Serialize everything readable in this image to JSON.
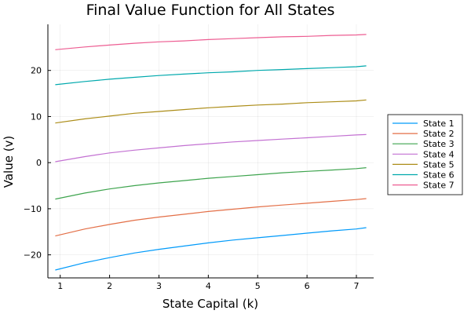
{
  "chart_data": {
    "type": "line",
    "title": "Final Value Function for All States",
    "xlabel": "State Capital (k)",
    "ylabel": "Value (v)",
    "xlim": [
      0.75,
      7.35
    ],
    "ylim": [
      -25,
      30
    ],
    "xticks": [
      1,
      2,
      3,
      4,
      5,
      6,
      7
    ],
    "yticks": [
      -20,
      -10,
      0,
      10,
      20
    ],
    "ytick_labels": [
      "−20",
      "−10",
      "0",
      "10",
      "20"
    ],
    "grid": true,
    "legend_position": "right",
    "x": [
      0.9,
      1.5,
      2.0,
      2.5,
      3.0,
      3.5,
      4.0,
      4.5,
      5.0,
      5.5,
      6.0,
      6.5,
      7.0,
      7.2
    ],
    "series": [
      {
        "name": "State 1",
        "color": "#009AFA",
        "values": [
          -23.3,
          -21.7,
          -20.6,
          -19.6,
          -18.8,
          -18.1,
          -17.4,
          -16.8,
          -16.3,
          -15.8,
          -15.3,
          -14.8,
          -14.4,
          -14.1
        ]
      },
      {
        "name": "State 2",
        "color": "#E36F47",
        "values": [
          -15.9,
          -14.4,
          -13.4,
          -12.5,
          -11.8,
          -11.2,
          -10.6,
          -10.1,
          -9.6,
          -9.2,
          -8.8,
          -8.4,
          -8.0,
          -7.8
        ]
      },
      {
        "name": "State 3",
        "color": "#3EA44E",
        "values": [
          -7.9,
          -6.6,
          -5.7,
          -5.0,
          -4.4,
          -3.9,
          -3.4,
          -3.0,
          -2.6,
          -2.2,
          -1.9,
          -1.6,
          -1.3,
          -1.1
        ]
      },
      {
        "name": "State 4",
        "color": "#C371D2",
        "values": [
          0.2,
          1.3,
          2.1,
          2.7,
          3.2,
          3.7,
          4.1,
          4.5,
          4.8,
          5.1,
          5.4,
          5.7,
          6.0,
          6.1
        ]
      },
      {
        "name": "State 5",
        "color": "#AC8D18",
        "values": [
          8.6,
          9.5,
          10.1,
          10.7,
          11.1,
          11.5,
          11.9,
          12.2,
          12.5,
          12.7,
          13.0,
          13.2,
          13.4,
          13.6
        ]
      },
      {
        "name": "State 6",
        "color": "#00A9AD",
        "values": [
          16.9,
          17.6,
          18.1,
          18.5,
          18.9,
          19.2,
          19.5,
          19.7,
          20.0,
          20.2,
          20.4,
          20.6,
          20.8,
          21.0
        ]
      },
      {
        "name": "State 7",
        "color": "#ED5D92",
        "values": [
          24.5,
          25.1,
          25.5,
          25.9,
          26.2,
          26.4,
          26.7,
          26.9,
          27.1,
          27.3,
          27.4,
          27.6,
          27.7,
          27.8
        ]
      }
    ]
  }
}
